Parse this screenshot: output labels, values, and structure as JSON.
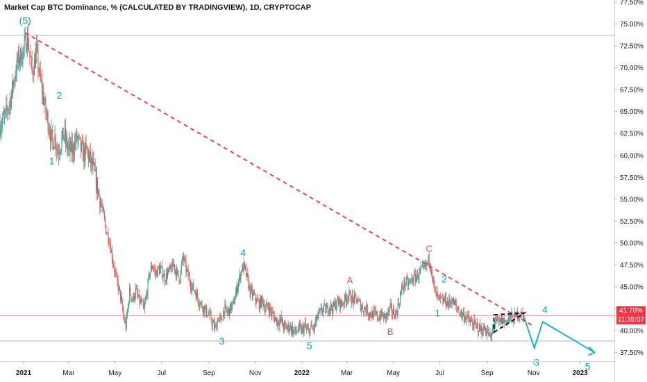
{
  "chart_data": {
    "type": "line",
    "title": "Market Cap BTC Dominance, % (CALCULATED BY TRADINGVIEW), 1D, CRYPTOCAP",
    "xlabel": "",
    "ylabel": "",
    "ylim": [
      36.5,
      77.75
    ],
    "xlim": [
      "2020-12-01",
      "2023-02-15"
    ],
    "y_ticks": [
      "77.50%",
      "75.00%",
      "72.50%",
      "70.00%",
      "67.50%",
      "65.00%",
      "62.50%",
      "60.00%",
      "57.50%",
      "55.00%",
      "52.50%",
      "50.00%",
      "47.50%",
      "45.00%",
      "42.50%",
      "40.00%",
      "37.50%"
    ],
    "y_tick_values": [
      77.5,
      75,
      72.5,
      70,
      67.5,
      65,
      62.5,
      60,
      57.5,
      55,
      52.5,
      50,
      47.5,
      45,
      42.5,
      40,
      37.5
    ],
    "x_ticks": [
      {
        "label": "2021",
        "date": "2021-01-01",
        "bold": true
      },
      {
        "label": "Mar",
        "date": "2021-03-01",
        "bold": false
      },
      {
        "label": "May",
        "date": "2021-05-01",
        "bold": false
      },
      {
        "label": "Jul",
        "date": "2021-07-01",
        "bold": false
      },
      {
        "label": "Sep",
        "date": "2021-09-01",
        "bold": false
      },
      {
        "label": "Nov",
        "date": "2021-11-01",
        "bold": false
      },
      {
        "label": "2022",
        "date": "2022-01-01",
        "bold": true
      },
      {
        "label": "Mar",
        "date": "2022-03-01",
        "bold": false
      },
      {
        "label": "May",
        "date": "2022-05-01",
        "bold": false
      },
      {
        "label": "Jul",
        "date": "2022-07-01",
        "bold": false
      },
      {
        "label": "Sep",
        "date": "2022-09-01",
        "bold": false
      },
      {
        "label": "Nov",
        "date": "2022-11-01",
        "bold": false
      },
      {
        "label": "2023",
        "date": "2023-01-01",
        "bold": true
      }
    ],
    "series": [
      {
        "color": "#131722",
        "style": "candles",
        "points": [
          [
            "2020-12-01",
            63.5
          ],
          [
            "2020-12-08",
            64.5
          ],
          [
            "2020-12-15",
            66.5
          ],
          [
            "2020-12-20",
            69.0
          ],
          [
            "2020-12-25",
            71.0
          ],
          [
            "2020-12-30",
            71.5
          ],
          [
            "2021-01-03",
            72.8
          ],
          [
            "2021-01-06",
            73.5
          ],
          [
            "2021-01-09",
            71.5
          ],
          [
            "2021-01-12",
            69.5
          ],
          [
            "2021-01-15",
            70.5
          ],
          [
            "2021-01-18",
            71.8
          ],
          [
            "2021-01-22",
            69.0
          ],
          [
            "2021-01-26",
            67.0
          ],
          [
            "2021-01-30",
            65.0
          ],
          [
            "2021-02-03",
            63.5
          ],
          [
            "2021-02-07",
            61.5
          ],
          [
            "2021-02-11",
            62.0
          ],
          [
            "2021-02-15",
            60.5
          ],
          [
            "2021-02-19",
            61.5
          ],
          [
            "2021-02-23",
            62.5
          ],
          [
            "2021-02-27",
            61.0
          ],
          [
            "2021-03-04",
            60.5
          ],
          [
            "2021-03-08",
            61.0
          ],
          [
            "2021-03-12",
            62.0
          ],
          [
            "2021-03-16",
            61.0
          ],
          [
            "2021-03-20",
            60.2
          ],
          [
            "2021-03-25",
            60.5
          ],
          [
            "2021-03-29",
            59.5
          ],
          [
            "2021-04-02",
            58.5
          ],
          [
            "2021-04-06",
            57.0
          ],
          [
            "2021-04-10",
            55.5
          ],
          [
            "2021-04-15",
            53.5
          ],
          [
            "2021-04-19",
            51.5
          ],
          [
            "2021-04-23",
            50.5
          ],
          [
            "2021-04-27",
            48.5
          ],
          [
            "2021-05-01",
            46.5
          ],
          [
            "2021-05-05",
            45.0
          ],
          [
            "2021-05-09",
            43.5
          ],
          [
            "2021-05-12",
            41.5
          ],
          [
            "2021-05-15",
            40.5
          ],
          [
            "2021-05-17",
            42.0
          ],
          [
            "2021-05-20",
            44.5
          ],
          [
            "2021-05-24",
            43.5
          ],
          [
            "2021-05-28",
            44.5
          ],
          [
            "2021-06-01",
            43.5
          ],
          [
            "2021-06-05",
            43.0
          ],
          [
            "2021-06-08",
            42.3
          ],
          [
            "2021-06-11",
            44.0
          ],
          [
            "2021-06-15",
            46.5
          ],
          [
            "2021-06-19",
            47.5
          ],
          [
            "2021-06-23",
            46.5
          ],
          [
            "2021-06-27",
            47.0
          ],
          [
            "2021-07-01",
            46.8
          ],
          [
            "2021-07-05",
            46.0
          ],
          [
            "2021-07-09",
            46.5
          ],
          [
            "2021-07-13",
            47.0
          ],
          [
            "2021-07-17",
            47.5
          ],
          [
            "2021-07-21",
            46.5
          ],
          [
            "2021-07-25",
            46.0
          ],
          [
            "2021-07-29",
            48.5
          ],
          [
            "2021-08-02",
            47.0
          ],
          [
            "2021-08-06",
            46.0
          ],
          [
            "2021-08-10",
            45.0
          ],
          [
            "2021-08-14",
            44.5
          ],
          [
            "2021-08-18",
            43.5
          ],
          [
            "2021-08-22",
            43.0
          ],
          [
            "2021-08-26",
            42.5
          ],
          [
            "2021-08-30",
            42.0
          ],
          [
            "2021-09-03",
            41.5
          ],
          [
            "2021-09-07",
            40.5
          ],
          [
            "2021-09-10",
            40.3
          ],
          [
            "2021-09-13",
            41.5
          ],
          [
            "2021-09-17",
            41.0
          ],
          [
            "2021-09-21",
            42.5
          ],
          [
            "2021-09-25",
            42.0
          ],
          [
            "2021-09-29",
            42.5
          ],
          [
            "2021-10-03",
            43.0
          ],
          [
            "2021-10-07",
            44.5
          ],
          [
            "2021-10-11",
            46.0
          ],
          [
            "2021-10-14",
            47.0
          ],
          [
            "2021-10-17",
            47.3
          ],
          [
            "2021-10-21",
            46.0
          ],
          [
            "2021-10-25",
            44.5
          ],
          [
            "2021-10-29",
            44.0
          ],
          [
            "2021-11-02",
            43.5
          ],
          [
            "2021-11-06",
            43.0
          ],
          [
            "2021-11-10",
            43.5
          ],
          [
            "2021-11-14",
            42.5
          ],
          [
            "2021-11-18",
            42.8
          ],
          [
            "2021-11-22",
            42.0
          ],
          [
            "2021-11-26",
            41.5
          ],
          [
            "2021-11-30",
            41.0
          ],
          [
            "2021-12-04",
            41.2
          ],
          [
            "2021-12-08",
            40.5
          ],
          [
            "2021-12-12",
            40.3
          ],
          [
            "2021-12-16",
            40.5
          ],
          [
            "2021-12-20",
            40.0
          ],
          [
            "2021-12-24",
            39.8
          ],
          [
            "2021-12-28",
            40.2
          ],
          [
            "2022-01-01",
            40.0
          ],
          [
            "2022-01-05",
            40.5
          ],
          [
            "2022-01-09",
            39.8
          ],
          [
            "2022-01-13",
            40.3
          ],
          [
            "2022-01-17",
            40.2
          ],
          [
            "2022-01-21",
            41.5
          ],
          [
            "2022-01-25",
            42.0
          ],
          [
            "2022-01-29",
            42.5
          ],
          [
            "2022-02-02",
            42.3
          ],
          [
            "2022-02-06",
            42.8
          ],
          [
            "2022-02-10",
            42.5
          ],
          [
            "2022-02-14",
            43.0
          ],
          [
            "2022-02-18",
            43.3
          ],
          [
            "2022-02-22",
            43.0
          ],
          [
            "2022-02-26",
            43.5
          ],
          [
            "2022-03-02",
            44.0
          ],
          [
            "2022-03-06",
            43.8
          ],
          [
            "2022-03-10",
            43.5
          ],
          [
            "2022-03-14",
            43.5
          ],
          [
            "2022-03-18",
            43.0
          ],
          [
            "2022-03-22",
            42.5
          ],
          [
            "2022-03-26",
            42.5
          ],
          [
            "2022-03-30",
            42.0
          ],
          [
            "2022-04-03",
            41.8
          ],
          [
            "2022-04-07",
            41.8
          ],
          [
            "2022-04-11",
            41.5
          ],
          [
            "2022-04-15",
            41.8
          ],
          [
            "2022-04-19",
            41.5
          ],
          [
            "2022-04-23",
            41.8
          ],
          [
            "2022-04-27",
            42.5
          ],
          [
            "2022-05-01",
            42.0
          ],
          [
            "2022-05-05",
            42.0
          ],
          [
            "2022-05-09",
            43.5
          ],
          [
            "2022-05-13",
            45.0
          ],
          [
            "2022-05-17",
            45.5
          ],
          [
            "2022-05-21",
            45.3
          ],
          [
            "2022-05-25",
            45.8
          ],
          [
            "2022-05-29",
            46.0
          ],
          [
            "2022-06-02",
            46.3
          ],
          [
            "2022-06-06",
            46.8
          ],
          [
            "2022-06-10",
            47.0
          ],
          [
            "2022-06-14",
            47.5
          ],
          [
            "2022-06-17",
            48.2
          ],
          [
            "2022-06-20",
            47.0
          ],
          [
            "2022-06-23",
            45.0
          ],
          [
            "2022-06-26",
            44.0
          ],
          [
            "2022-06-30",
            43.5
          ],
          [
            "2022-07-04",
            43.3
          ],
          [
            "2022-07-08",
            43.5
          ],
          [
            "2022-07-12",
            43.0
          ],
          [
            "2022-07-16",
            43.5
          ],
          [
            "2022-07-20",
            43.0
          ],
          [
            "2022-07-24",
            42.5
          ],
          [
            "2022-07-28",
            42.0
          ],
          [
            "2022-08-01",
            41.8
          ],
          [
            "2022-08-05",
            41.5
          ],
          [
            "2022-08-09",
            41.0
          ],
          [
            "2022-08-13",
            40.8
          ],
          [
            "2022-08-17",
            40.5
          ],
          [
            "2022-08-21",
            40.3
          ],
          [
            "2022-08-25",
            40.0
          ],
          [
            "2022-08-29",
            40.2
          ],
          [
            "2022-09-02",
            39.8
          ],
          [
            "2022-09-06",
            39.0
          ],
          [
            "2022-09-09",
            40.5
          ],
          [
            "2022-09-12",
            41.0
          ],
          [
            "2022-09-16",
            40.8
          ],
          [
            "2022-09-20",
            41.2
          ],
          [
            "2022-09-24",
            41.0
          ],
          [
            "2022-09-28",
            41.3
          ],
          [
            "2022-10-02",
            41.5
          ],
          [
            "2022-10-06",
            41.3
          ],
          [
            "2022-10-10",
            41.8
          ],
          [
            "2022-10-13",
            42.0
          ],
          [
            "2022-10-16",
            41.8
          ],
          [
            "2022-10-19",
            41.7
          ]
        ]
      }
    ],
    "annotations": [
      {
        "label": "(5)",
        "date": "2021-01-03",
        "value": 75.0,
        "color": "#00a6b8"
      },
      {
        "label": "2",
        "date": "2021-02-17",
        "value": 66.5,
        "color": "#00a6b8"
      },
      {
        "label": "1",
        "date": "2021-02-07",
        "value": 59.0,
        "color": "#00a6b8"
      },
      {
        "label": "3",
        "date": "2021-09-18",
        "value": 38.4,
        "color": "#00a6b8"
      },
      {
        "label": "4",
        "date": "2021-10-16",
        "value": 48.5,
        "color": "#00a6b8"
      },
      {
        "label": "5",
        "date": "2022-01-11",
        "value": 37.9,
        "color": "#00a6b8"
      },
      {
        "label": "A",
        "date": "2022-03-05",
        "value": 45.4,
        "color": "#e8434f"
      },
      {
        "label": "B",
        "date": "2022-04-27",
        "value": 39.5,
        "color": "#e8434f"
      },
      {
        "label": "C",
        "date": "2022-06-17",
        "value": 49.0,
        "color": "#e8434f"
      },
      {
        "label": "2",
        "date": "2022-07-07",
        "value": 45.5,
        "color": "#00a6b8"
      },
      {
        "label": "1",
        "date": "2022-06-28",
        "value": 41.6,
        "color": "#00a6b8"
      },
      {
        "label": "4",
        "date": "2022-11-16",
        "value": 42.0,
        "color": "#00a6b8"
      },
      {
        "label": "3",
        "date": "2022-11-05",
        "value": 36.0,
        "color": "#00a6b8"
      },
      {
        "label": "5",
        "date": "2023-01-11",
        "value": 35.5,
        "color": "#00a6b8"
      }
    ],
    "trendline": {
      "color": "#e8434f",
      "style": "dashed",
      "points": [
        [
          "2021-01-03",
          74.0
        ],
        [
          "2022-11-01",
          40.5
        ]
      ]
    },
    "projection": {
      "color": "#1db3c6",
      "points": [
        [
          "2022-10-19",
          41.7
        ],
        [
          "2022-11-02",
          38.0
        ],
        [
          "2022-11-13",
          41.0
        ],
        [
          "2023-01-20",
          37.5
        ]
      ]
    },
    "triangle": {
      "color": "#131722",
      "style": "dashed",
      "points": [
        [
          "2022-09-10",
          39.8
        ],
        [
          "2022-10-20",
          42.0
        ],
        [
          "2022-09-10",
          41.8
        ]
      ]
    },
    "horizontal_levels": [
      {
        "value": 73.7,
        "color": "#b2b5be"
      },
      {
        "value": 41.7,
        "color": "#f5a3a9"
      },
      {
        "value": 38.8,
        "color": "#b2b5be"
      }
    ],
    "last_value": {
      "value_label": "41.70%",
      "countdown": "11:35:07",
      "color": "#f23645"
    },
    "grid": false
  }
}
